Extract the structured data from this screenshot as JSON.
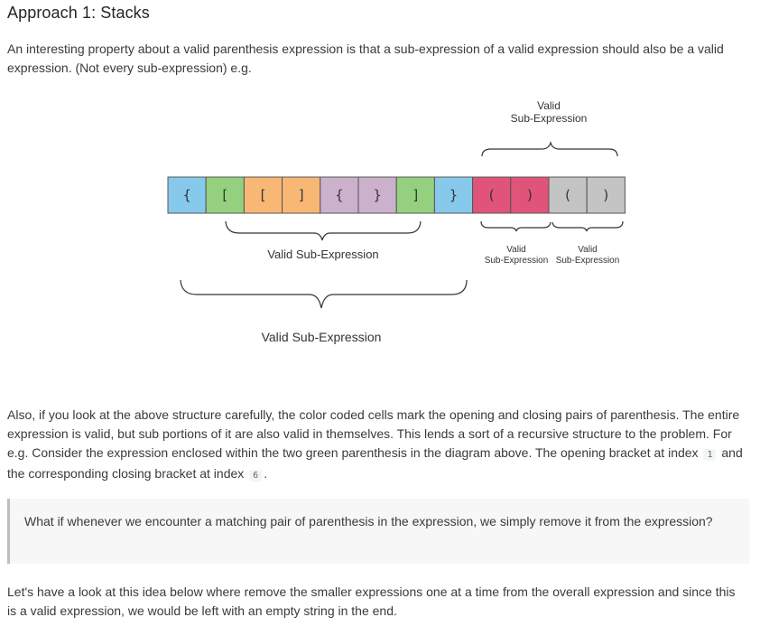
{
  "title": "Approach 1: Stacks",
  "intro": "An interesting property about a valid parenthesis expression is that a sub-expression of a valid expression should also be a valid expression. (Not every sub-expression) e.g.",
  "diagram": {
    "cells": [
      {
        "char": "{",
        "color": "#86c9ea"
      },
      {
        "char": "[",
        "color": "#95d07f"
      },
      {
        "char": "[",
        "color": "#f9b775"
      },
      {
        "char": "]",
        "color": "#f9b775"
      },
      {
        "char": "{",
        "color": "#ccb1cd"
      },
      {
        "char": "}",
        "color": "#ccb1cd"
      },
      {
        "char": "]",
        "color": "#95d07f"
      },
      {
        "char": "}",
        "color": "#86c9ea"
      },
      {
        "char": "(",
        "color": "#e0547a"
      },
      {
        "char": ")",
        "color": "#e0547a"
      },
      {
        "char": "(",
        "color": "#c4c4c4"
      },
      {
        "char": ")",
        "color": "#c4c4c4"
      }
    ],
    "labels": {
      "top_valid": "Valid",
      "top_sub": "Sub-Expression",
      "inner": "Valid Sub-Expression",
      "outer": "Valid Sub-Expression",
      "small_left_valid": "Valid",
      "small_left_sub": "Sub-Expression",
      "small_right_valid": "Valid",
      "small_right_sub": "Sub-Expression"
    }
  },
  "para2_before_1": "Also, if you look at the above structure carefully, the color coded cells mark the opening and closing pairs of parenthesis. The entire expression is valid, but sub portions of it are also valid in themselves. This lends a sort of a recursive structure to the problem. For e.g. Consider the expression enclosed within the two green parenthesis in the diagram above. The opening bracket at index",
  "index_open": "1",
  "para2_middle": "and the corresponding closing bracket at index",
  "index_close": "6",
  "para2_end": ".",
  "callout": "What if whenever we encounter a matching pair of parenthesis in the expression, we simply remove it from the expression?",
  "para3": "Let's have a look at this idea below where remove the smaller expressions one at a time from the overall expression and since this is a valid expression, we would be left with an empty string in the end."
}
